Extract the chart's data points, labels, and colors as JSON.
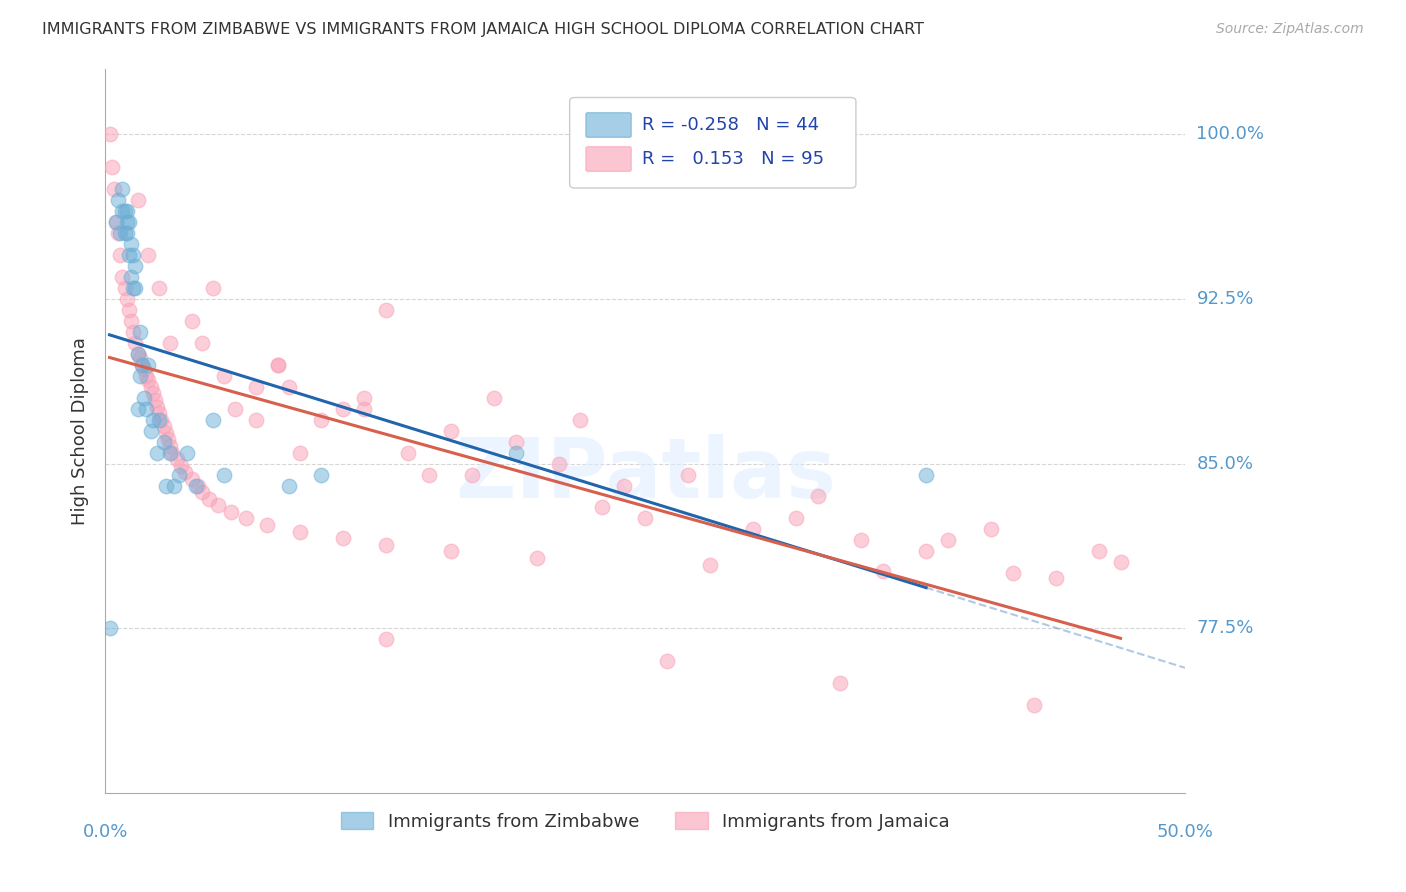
{
  "title": "IMMIGRANTS FROM ZIMBABWE VS IMMIGRANTS FROM JAMAICA HIGH SCHOOL DIPLOMA CORRELATION CHART",
  "source": "Source: ZipAtlas.com",
  "ylabel": "High School Diploma",
  "ytick_labels": [
    "77.5%",
    "85.0%",
    "92.5%",
    "100.0%"
  ],
  "ytick_values": [
    0.775,
    0.85,
    0.925,
    1.0
  ],
  "xlim": [
    0.0,
    0.5
  ],
  "ylim": [
    0.7,
    1.03
  ],
  "legend_r_blue": "-0.258",
  "legend_n_blue": "44",
  "legend_r_pink": "0.153",
  "legend_n_pink": "95",
  "blue_color": "#6baed6",
  "pink_color": "#fa9fb5",
  "blue_line_color": "#2166ac",
  "pink_line_color": "#d6604d",
  "label_blue": "Immigrants from Zimbabwe",
  "label_pink": "Immigrants from Jamaica",
  "grid_color": "#cccccc",
  "right_label_color": "#5599cc",
  "zimbabwe_x": [
    0.002,
    0.005,
    0.006,
    0.007,
    0.008,
    0.008,
    0.009,
    0.009,
    0.01,
    0.01,
    0.01,
    0.011,
    0.011,
    0.012,
    0.012,
    0.013,
    0.013,
    0.014,
    0.014,
    0.015,
    0.015,
    0.016,
    0.016,
    0.017,
    0.018,
    0.019,
    0.02,
    0.021,
    0.022,
    0.024,
    0.025,
    0.027,
    0.028,
    0.03,
    0.032,
    0.034,
    0.038,
    0.042,
    0.05,
    0.055,
    0.085,
    0.1,
    0.19,
    0.38
  ],
  "zimbabwe_y": [
    0.775,
    0.96,
    0.97,
    0.955,
    0.965,
    0.975,
    0.955,
    0.965,
    0.955,
    0.96,
    0.965,
    0.945,
    0.96,
    0.935,
    0.95,
    0.93,
    0.945,
    0.93,
    0.94,
    0.875,
    0.9,
    0.89,
    0.91,
    0.895,
    0.88,
    0.875,
    0.895,
    0.865,
    0.87,
    0.855,
    0.87,
    0.86,
    0.84,
    0.855,
    0.84,
    0.845,
    0.855,
    0.84,
    0.87,
    0.845,
    0.84,
    0.845,
    0.855,
    0.845
  ],
  "jamaica_x": [
    0.002,
    0.003,
    0.004,
    0.005,
    0.006,
    0.007,
    0.008,
    0.009,
    0.01,
    0.011,
    0.012,
    0.013,
    0.014,
    0.015,
    0.016,
    0.017,
    0.018,
    0.019,
    0.02,
    0.021,
    0.022,
    0.023,
    0.024,
    0.025,
    0.026,
    0.027,
    0.028,
    0.029,
    0.03,
    0.031,
    0.033,
    0.035,
    0.037,
    0.04,
    0.043,
    0.045,
    0.048,
    0.052,
    0.058,
    0.065,
    0.075,
    0.09,
    0.11,
    0.13,
    0.16,
    0.2,
    0.28,
    0.36,
    0.44,
    0.13,
    0.18,
    0.22,
    0.05,
    0.08,
    0.12,
    0.04,
    0.03,
    0.06,
    0.07,
    0.09,
    0.15,
    0.25,
    0.35,
    0.015,
    0.025,
    0.055,
    0.02,
    0.045,
    0.085,
    0.1,
    0.14,
    0.17,
    0.23,
    0.3,
    0.38,
    0.42,
    0.07,
    0.11,
    0.19,
    0.27,
    0.33,
    0.41,
    0.46,
    0.08,
    0.12,
    0.16,
    0.21,
    0.24,
    0.32,
    0.39,
    0.47,
    0.13,
    0.26,
    0.34,
    0.43
  ],
  "jamaica_y": [
    1.0,
    0.985,
    0.975,
    0.96,
    0.955,
    0.945,
    0.935,
    0.93,
    0.925,
    0.92,
    0.915,
    0.91,
    0.905,
    0.9,
    0.898,
    0.895,
    0.893,
    0.89,
    0.888,
    0.885,
    0.882,
    0.879,
    0.876,
    0.873,
    0.87,
    0.867,
    0.864,
    0.861,
    0.858,
    0.855,
    0.852,
    0.849,
    0.846,
    0.843,
    0.84,
    0.837,
    0.834,
    0.831,
    0.828,
    0.825,
    0.822,
    0.819,
    0.816,
    0.813,
    0.81,
    0.807,
    0.804,
    0.801,
    0.798,
    0.92,
    0.88,
    0.87,
    0.93,
    0.895,
    0.875,
    0.915,
    0.905,
    0.875,
    0.87,
    0.855,
    0.845,
    0.825,
    0.815,
    0.97,
    0.93,
    0.89,
    0.945,
    0.905,
    0.885,
    0.87,
    0.855,
    0.845,
    0.83,
    0.82,
    0.81,
    0.8,
    0.885,
    0.875,
    0.86,
    0.845,
    0.835,
    0.82,
    0.81,
    0.895,
    0.88,
    0.865,
    0.85,
    0.84,
    0.825,
    0.815,
    0.805,
    0.77,
    0.76,
    0.75,
    0.74
  ]
}
